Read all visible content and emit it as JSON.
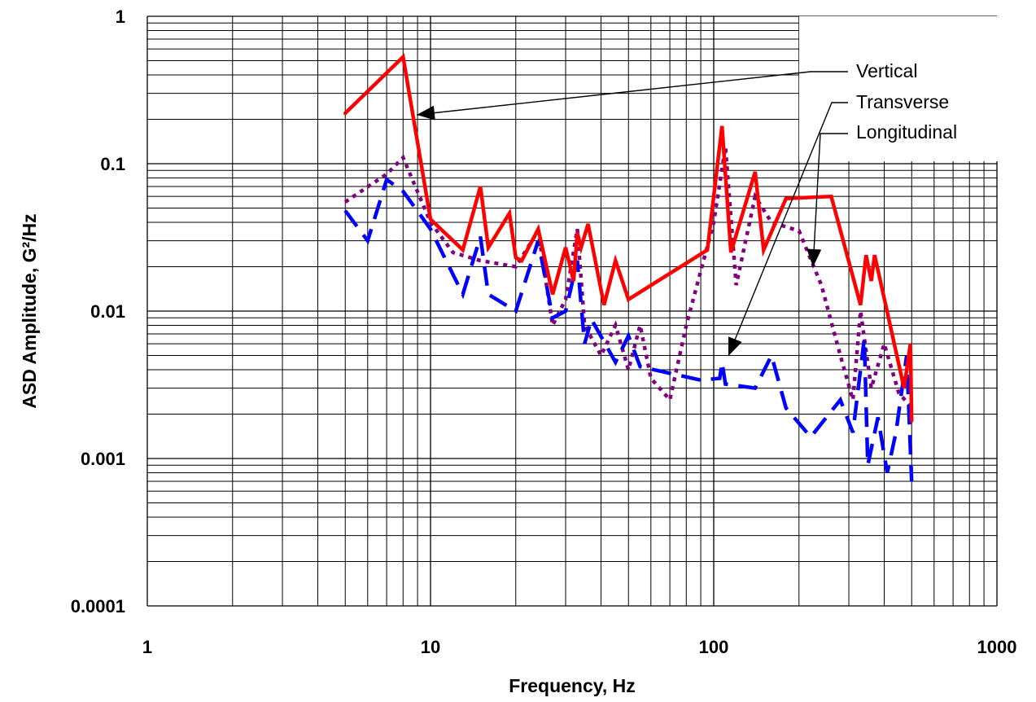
{
  "chart_data": {
    "type": "line",
    "xlabel": "Frequency, Hz",
    "ylabel": "ASD Amplitude, G²/Hz",
    "xscale": "log",
    "yscale": "log",
    "xlim": [
      1,
      1000
    ],
    "ylim": [
      0.0001,
      1
    ],
    "grid": true,
    "x_tick_labels": [
      "1",
      "10",
      "100",
      "1000"
    ],
    "y_tick_labels": [
      "0.0001",
      "0.001",
      "0.01",
      "0.1",
      "1"
    ],
    "series": [
      {
        "name": "Vertical",
        "color": "#ff0000",
        "style": "solid",
        "points": [
          [
            5,
            0.22
          ],
          [
            8,
            0.53
          ],
          [
            10,
            0.042
          ],
          [
            13,
            0.026
          ],
          [
            15,
            0.07
          ],
          [
            16,
            0.027
          ],
          [
            19,
            0.046
          ],
          [
            20,
            0.023
          ],
          [
            21,
            0.022
          ],
          [
            24,
            0.036
          ],
          [
            27,
            0.013
          ],
          [
            30,
            0.027
          ],
          [
            32,
            0.016
          ],
          [
            33,
            0.034
          ],
          [
            34,
            0.027
          ],
          [
            36,
            0.039
          ],
          [
            41,
            0.011
          ],
          [
            45,
            0.022
          ],
          [
            50,
            0.012
          ],
          [
            95,
            0.026
          ],
          [
            107,
            0.18
          ],
          [
            115,
            0.025
          ],
          [
            140,
            0.088
          ],
          [
            150,
            0.026
          ],
          [
            180,
            0.058
          ],
          [
            260,
            0.06
          ],
          [
            330,
            0.011
          ],
          [
            345,
            0.024
          ],
          [
            360,
            0.016
          ],
          [
            370,
            0.024
          ],
          [
            470,
            0.003
          ],
          [
            495,
            0.006
          ],
          [
            500,
            0.0018
          ]
        ]
      },
      {
        "name": "Transverse",
        "color": "#0000ff",
        "style": "dashed",
        "points": [
          [
            5,
            0.048
          ],
          [
            6,
            0.03
          ],
          [
            7,
            0.078
          ],
          [
            8,
            0.065
          ],
          [
            10,
            0.036
          ],
          [
            13,
            0.013
          ],
          [
            15,
            0.032
          ],
          [
            16,
            0.013
          ],
          [
            20,
            0.01
          ],
          [
            24,
            0.03
          ],
          [
            27,
            0.009
          ],
          [
            30,
            0.01
          ],
          [
            33,
            0.022
          ],
          [
            35,
            0.006
          ],
          [
            37,
            0.0088
          ],
          [
            45,
            0.0045
          ],
          [
            50,
            0.0068
          ],
          [
            55,
            0.0042
          ],
          [
            90,
            0.0034
          ],
          [
            105,
            0.0035
          ],
          [
            107,
            0.0045
          ],
          [
            110,
            0.0032
          ],
          [
            140,
            0.003
          ],
          [
            160,
            0.005
          ],
          [
            180,
            0.0022
          ],
          [
            220,
            0.0014
          ],
          [
            280,
            0.0025
          ],
          [
            310,
            0.0015
          ],
          [
            340,
            0.0065
          ],
          [
            350,
            0.0009
          ],
          [
            380,
            0.0019
          ],
          [
            410,
            0.0008
          ],
          [
            440,
            0.0015
          ],
          [
            480,
            0.005
          ],
          [
            500,
            0.0007
          ]
        ]
      },
      {
        "name": "Longitudinal",
        "color": "#800080",
        "style": "dotted",
        "points": [
          [
            5,
            0.055
          ],
          [
            7,
            0.085
          ],
          [
            8,
            0.11
          ],
          [
            10,
            0.04
          ],
          [
            12,
            0.025
          ],
          [
            15,
            0.022
          ],
          [
            20,
            0.02
          ],
          [
            24,
            0.035
          ],
          [
            27,
            0.008
          ],
          [
            30,
            0.012
          ],
          [
            33,
            0.036
          ],
          [
            35,
            0.008
          ],
          [
            40,
            0.005
          ],
          [
            45,
            0.008
          ],
          [
            50,
            0.004
          ],
          [
            55,
            0.008
          ],
          [
            60,
            0.0035
          ],
          [
            70,
            0.0025
          ],
          [
            80,
            0.008
          ],
          [
            100,
            0.04
          ],
          [
            110,
            0.13
          ],
          [
            120,
            0.015
          ],
          [
            140,
            0.06
          ],
          [
            160,
            0.04
          ],
          [
            200,
            0.035
          ],
          [
            240,
            0.015
          ],
          [
            280,
            0.005
          ],
          [
            310,
            0.0025
          ],
          [
            330,
            0.01
          ],
          [
            360,
            0.003
          ],
          [
            400,
            0.006
          ],
          [
            450,
            0.0028
          ],
          [
            500,
            0.0022
          ]
        ]
      }
    ]
  }
}
